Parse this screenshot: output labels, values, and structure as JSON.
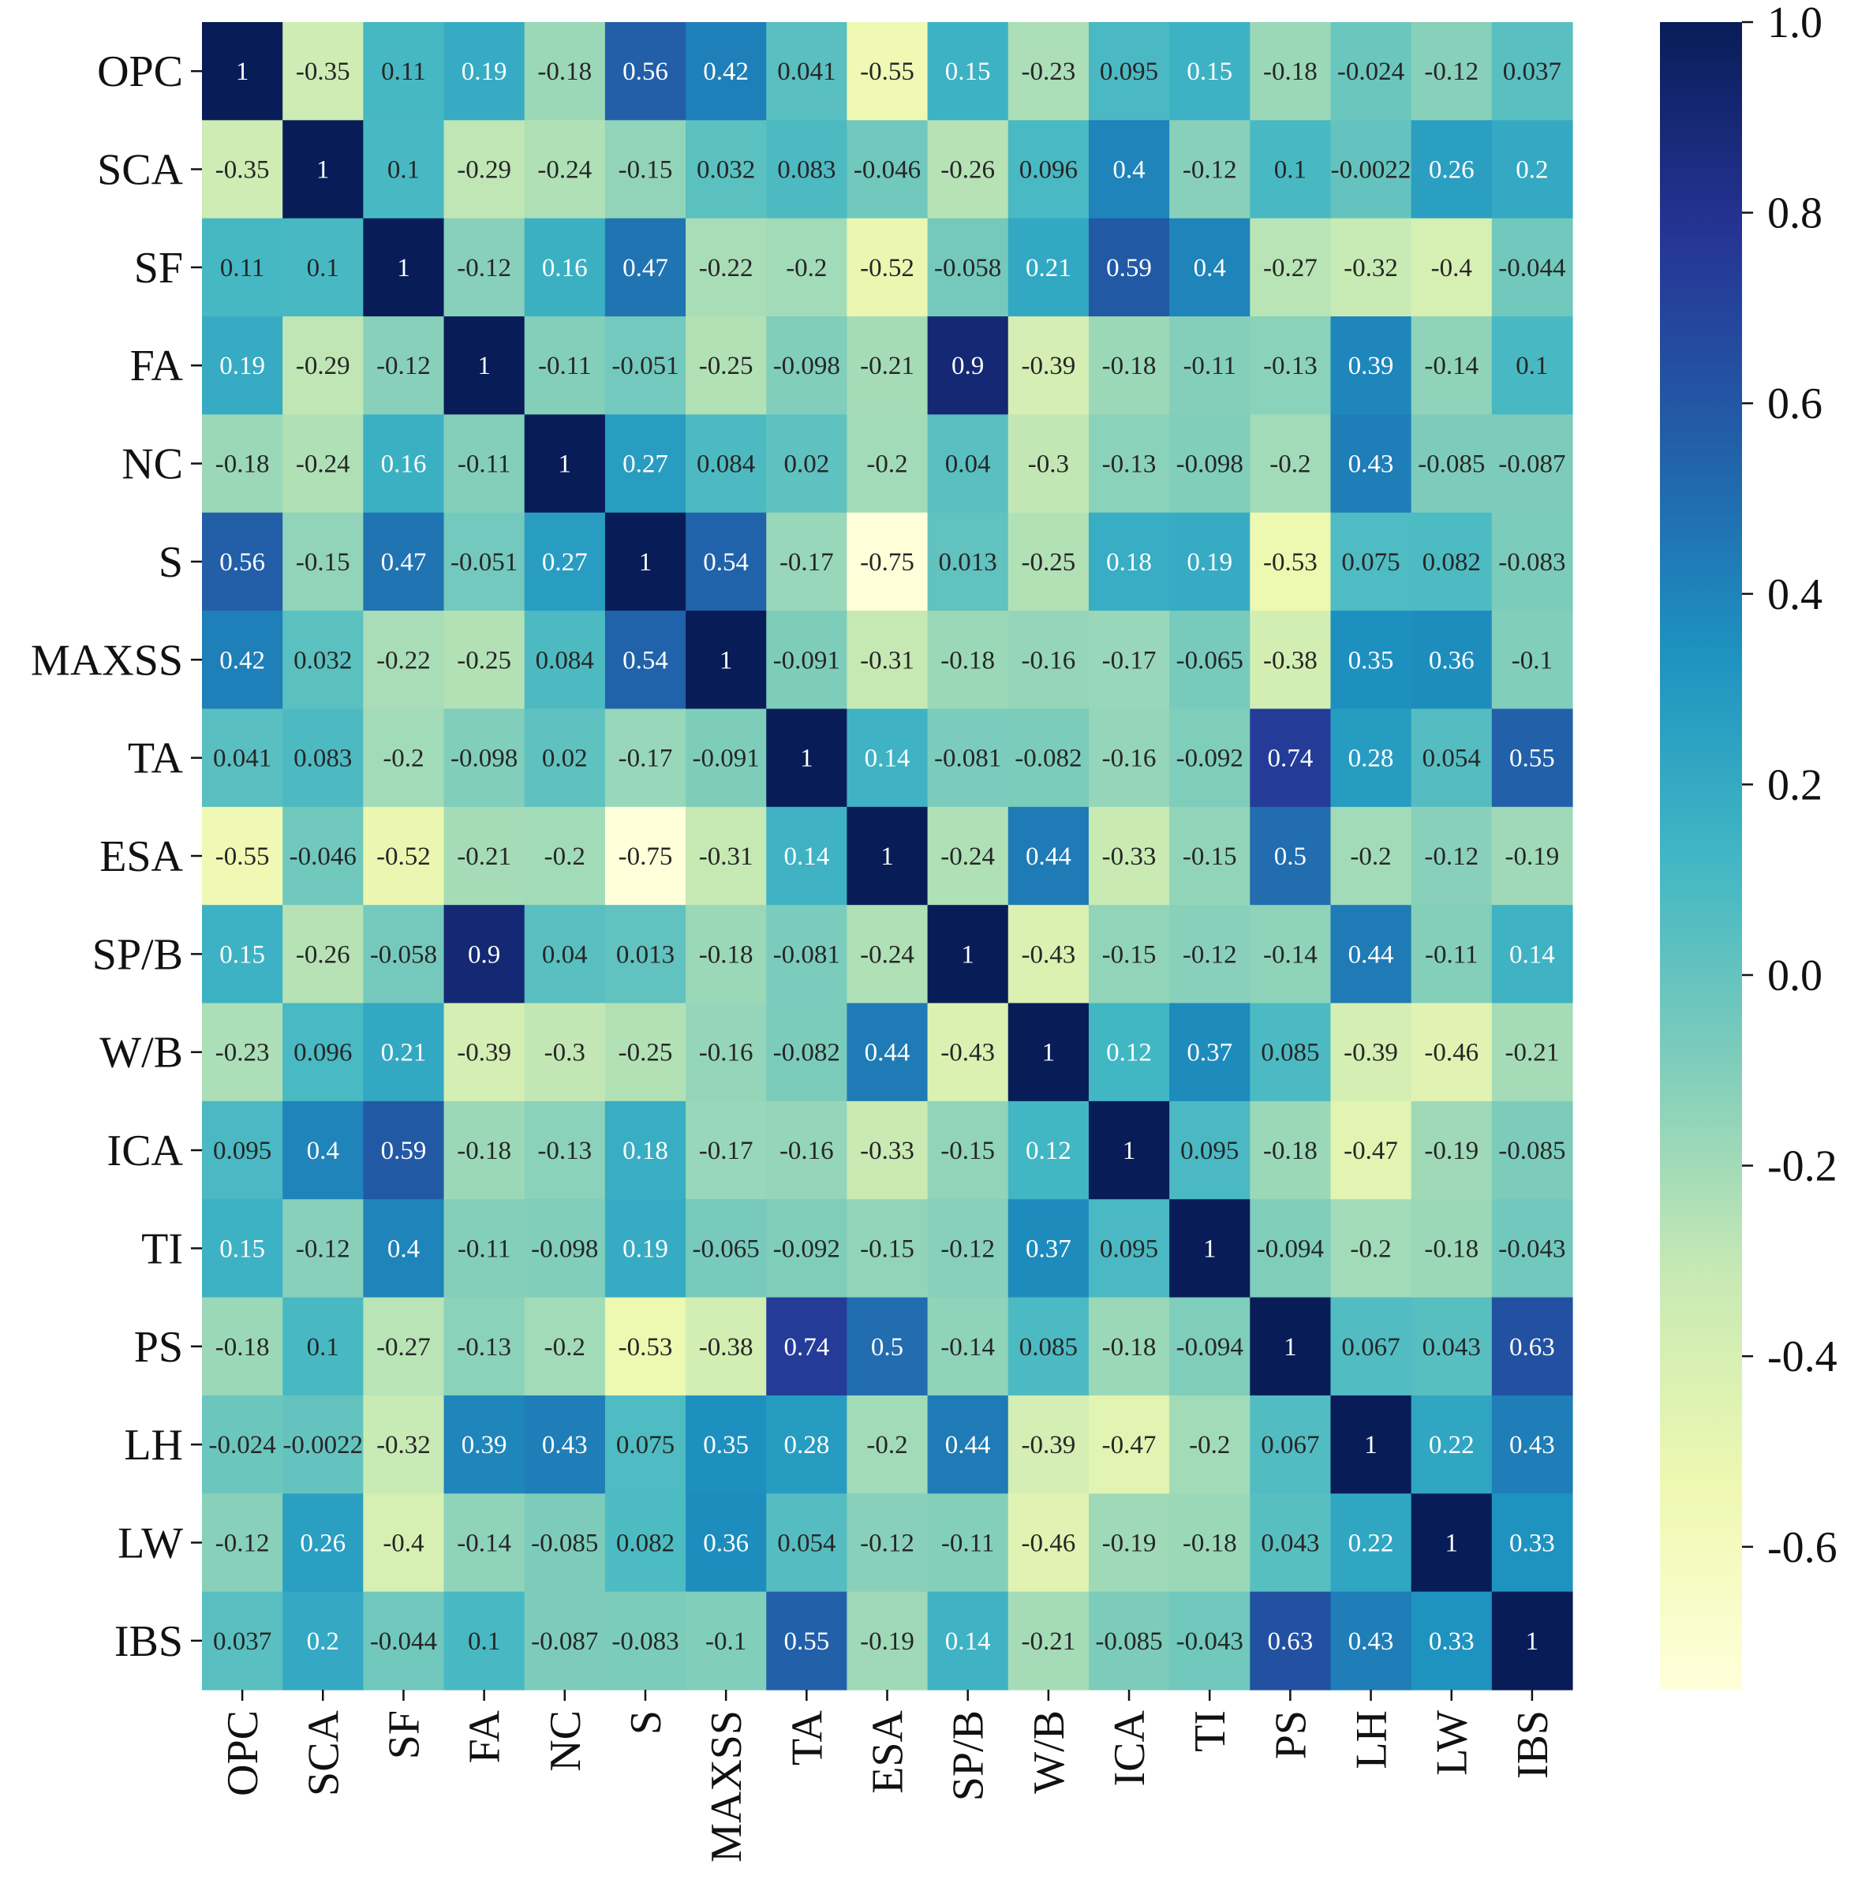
{
  "chart_data": {
    "type": "heatmap",
    "title": "",
    "xlabel": "",
    "ylabel": "",
    "row_labels": [
      "OPC",
      "SCA",
      "SF",
      "FA",
      "NC",
      "S",
      "MAXSS",
      "TA",
      "ESA",
      "SP/B",
      "W/B",
      "ICA",
      "TI",
      "PS",
      "LH",
      "LW",
      "IBS"
    ],
    "col_labels": [
      "OPC",
      "SCA",
      "SF",
      "FA",
      "NC",
      "S",
      "MAXSS",
      "TA",
      "ESA",
      "SP/B",
      "W/B",
      "ICA",
      "TI",
      "PS",
      "LH",
      "LW",
      "IBS"
    ],
    "values": [
      [
        1,
        -0.35,
        0.11,
        0.19,
        -0.18,
        0.56,
        0.42,
        0.041,
        -0.55,
        0.15,
        -0.23,
        0.095,
        0.15,
        -0.18,
        -0.024,
        -0.12,
        0.037
      ],
      [
        -0.35,
        1,
        0.1,
        -0.29,
        -0.24,
        -0.15,
        0.032,
        0.083,
        -0.046,
        -0.26,
        0.096,
        0.4,
        -0.12,
        0.1,
        -0.0022,
        0.26,
        0.2
      ],
      [
        0.11,
        0.1,
        1,
        -0.12,
        0.16,
        0.47,
        -0.22,
        -0.2,
        -0.52,
        -0.058,
        0.21,
        0.59,
        0.4,
        -0.27,
        -0.32,
        -0.4,
        -0.044
      ],
      [
        0.19,
        -0.29,
        -0.12,
        1,
        -0.11,
        -0.051,
        -0.25,
        -0.098,
        -0.21,
        0.9,
        -0.39,
        -0.18,
        -0.11,
        -0.13,
        0.39,
        -0.14,
        0.1
      ],
      [
        -0.18,
        -0.24,
        0.16,
        -0.11,
        1,
        0.27,
        0.084,
        0.02,
        -0.2,
        0.04,
        -0.3,
        -0.13,
        -0.098,
        -0.2,
        0.43,
        -0.085,
        -0.087
      ],
      [
        0.56,
        -0.15,
        0.47,
        -0.051,
        0.27,
        1,
        0.54,
        -0.17,
        -0.75,
        0.013,
        -0.25,
        0.18,
        0.19,
        -0.53,
        0.075,
        0.082,
        -0.083
      ],
      [
        0.42,
        0.032,
        -0.22,
        -0.25,
        0.084,
        0.54,
        1,
        -0.091,
        -0.31,
        -0.18,
        -0.16,
        -0.17,
        -0.065,
        -0.38,
        0.35,
        0.36,
        -0.1
      ],
      [
        0.041,
        0.083,
        -0.2,
        -0.098,
        0.02,
        -0.17,
        -0.091,
        1,
        0.14,
        -0.081,
        -0.082,
        -0.16,
        -0.092,
        0.74,
        0.28,
        0.054,
        0.55
      ],
      [
        -0.55,
        -0.046,
        -0.52,
        -0.21,
        -0.2,
        -0.75,
        -0.31,
        0.14,
        1,
        -0.24,
        0.44,
        -0.33,
        -0.15,
        0.5,
        -0.2,
        -0.12,
        -0.19
      ],
      [
        0.15,
        -0.26,
        -0.058,
        0.9,
        0.04,
        0.013,
        -0.18,
        -0.081,
        -0.24,
        1,
        -0.43,
        -0.15,
        -0.12,
        -0.14,
        0.44,
        -0.11,
        0.14
      ],
      [
        -0.23,
        0.096,
        0.21,
        -0.39,
        -0.3,
        -0.25,
        -0.16,
        -0.082,
        0.44,
        -0.43,
        1,
        0.12,
        0.37,
        0.085,
        -0.39,
        -0.46,
        -0.21
      ],
      [
        0.095,
        0.4,
        0.59,
        -0.18,
        -0.13,
        0.18,
        -0.17,
        -0.16,
        -0.33,
        -0.15,
        0.12,
        1,
        0.095,
        -0.18,
        -0.47,
        -0.19,
        -0.085
      ],
      [
        0.15,
        -0.12,
        0.4,
        -0.11,
        -0.098,
        0.19,
        -0.065,
        -0.092,
        -0.15,
        -0.12,
        0.37,
        0.095,
        1,
        -0.094,
        -0.2,
        -0.18,
        -0.043
      ],
      [
        -0.18,
        0.1,
        -0.27,
        -0.13,
        -0.2,
        -0.53,
        -0.38,
        0.74,
        0.5,
        -0.14,
        0.085,
        -0.18,
        -0.094,
        1,
        0.067,
        0.043,
        0.63
      ],
      [
        -0.024,
        -0.0022,
        -0.32,
        0.39,
        0.43,
        0.075,
        0.35,
        0.28,
        -0.2,
        0.44,
        -0.39,
        -0.47,
        -0.2,
        0.067,
        1,
        0.22,
        0.43
      ],
      [
        -0.12,
        0.26,
        -0.4,
        -0.14,
        -0.085,
        0.082,
        0.36,
        0.054,
        -0.12,
        -0.11,
        -0.46,
        -0.19,
        -0.18,
        0.043,
        0.22,
        1,
        0.33
      ],
      [
        0.037,
        0.2,
        -0.044,
        0.1,
        -0.087,
        -0.083,
        -0.1,
        0.55,
        -0.19,
        0.14,
        -0.21,
        -0.085,
        -0.043,
        0.63,
        0.43,
        0.33,
        1
      ]
    ],
    "colorbar": {
      "min": -0.75,
      "max": 1.0,
      "ticks": [
        1.0,
        0.8,
        0.6,
        0.4,
        0.2,
        0.0,
        -0.2,
        -0.4,
        -0.6
      ],
      "tick_labels": [
        "1.0",
        "0.8",
        "0.6",
        "0.4",
        "0.2",
        "0.0",
        "-0.2",
        "-0.4",
        "-0.6"
      ]
    },
    "colormap": "YlGnBu",
    "colormap_stops": [
      "#ffffd9",
      "#edf8b1",
      "#c7e9b4",
      "#7fcdbb",
      "#41b6c4",
      "#1d91c0",
      "#225ea8",
      "#253494",
      "#081d58"
    ]
  }
}
